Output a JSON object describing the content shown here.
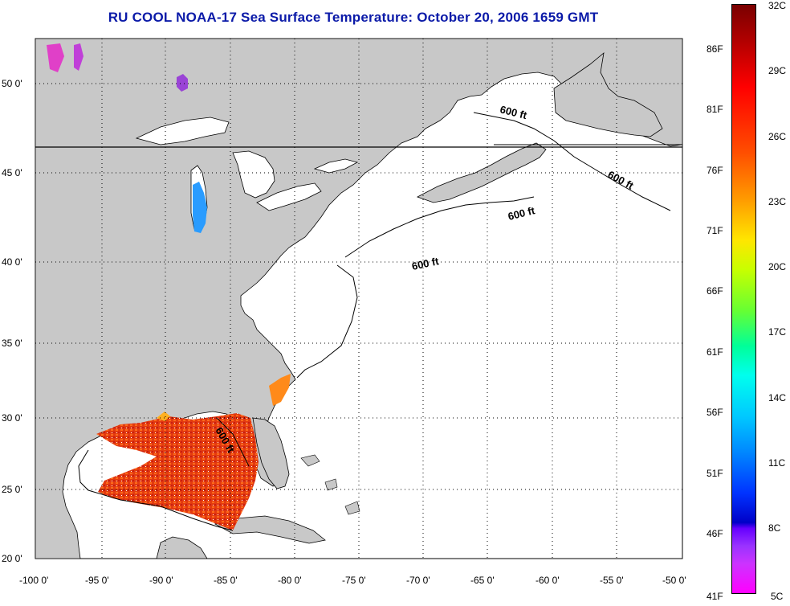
{
  "title": "RU COOL  NOAA-17  Sea Surface Temperature:  October 20, 2006 1659 GMT",
  "map": {
    "lon_range": [
      -100,
      -50
    ],
    "lat_range": [
      20,
      52
    ],
    "lat_ticks": [
      "50 0'",
      "45 0'",
      "40 0'",
      "35 0'",
      "30 0'",
      "25 0'",
      "20 0'"
    ],
    "lon_ticks": [
      "-100 0'",
      "-95 0'",
      "-90 0'",
      "-85 0'",
      "-80 0'",
      "-75 0'",
      "-70 0'",
      "-65 0'",
      "-60 0'",
      "-55 0'",
      "-50 0'"
    ],
    "depth_contour_label": "600 ft",
    "land_color": "#c8c8c8",
    "ocean_color": "#ffffff",
    "grid": "dotted"
  },
  "colorbar": {
    "celsius_labels": [
      "32C",
      "29C",
      "26C",
      "23C",
      "20C",
      "17C",
      "14C",
      "11C",
      "8C",
      "5C"
    ],
    "fahrenheit_labels": [
      "86F",
      "81F",
      "76F",
      "71F",
      "66F",
      "61F",
      "56F",
      "51F",
      "46F",
      "41F"
    ],
    "range_c": [
      5,
      32
    ]
  }
}
